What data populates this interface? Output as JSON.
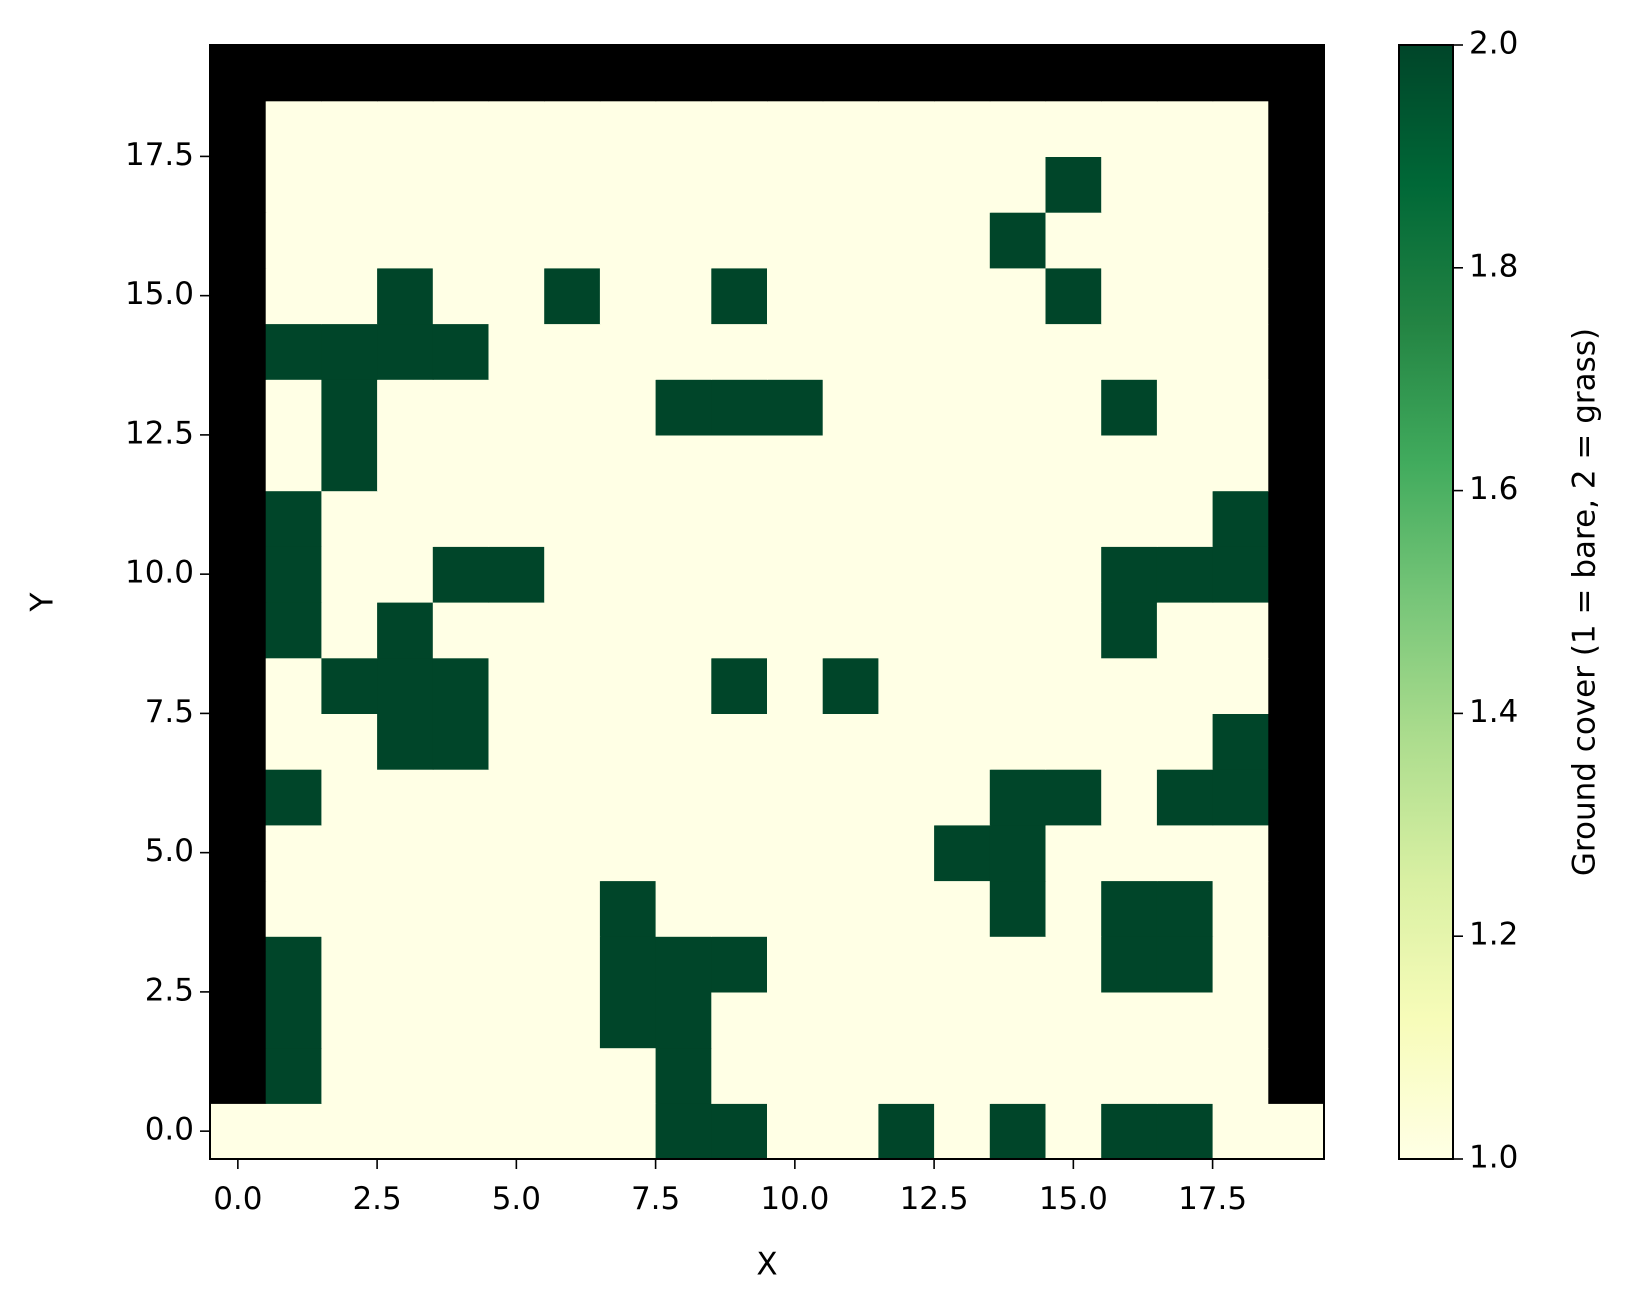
{
  "chart_data": {
    "type": "heatmap",
    "xlabel": "X",
    "ylabel": "Y",
    "colorbar_label": "Ground cover (1 = bare, 2 = grass)",
    "xlim": [
      -0.5,
      19.5
    ],
    "ylim": [
      -0.5,
      19.5
    ],
    "xticks": [
      {
        "value": 0,
        "label": "0.0"
      },
      2.5,
      {
        "value": 5,
        "label": "5.0"
      },
      7.5,
      {
        "value": 10,
        "label": "10.0"
      },
      12.5,
      {
        "value": 15,
        "label": "15.0"
      },
      17.5
    ],
    "yticks": [
      {
        "value": 0,
        "label": "0.0"
      },
      2.5,
      {
        "value": 5,
        "label": "5.0"
      },
      7.5,
      {
        "value": 10,
        "label": "10.0"
      },
      12.5,
      {
        "value": 15,
        "label": "15.0"
      },
      17.5
    ],
    "clim": [
      1,
      2
    ],
    "cticks": [
      {
        "value": 1,
        "label": "1.0"
      },
      1.2,
      1.4,
      1.6,
      1.8,
      {
        "value": 2,
        "label": "2.0"
      }
    ],
    "colormap": [
      "#ffffe5",
      "#f7fcb9",
      "#d9f0a3",
      "#addd8e",
      "#78c679",
      "#41ab5d",
      "#238443",
      "#006837",
      "#004529"
    ],
    "bad_color": "#000000",
    "z": [
      [
        1,
        1,
        1,
        1,
        1,
        1,
        1,
        1,
        2,
        2,
        1,
        1,
        2,
        1,
        2,
        1,
        2,
        2,
        1,
        1
      ],
      [
        null,
        2,
        1,
        1,
        1,
        1,
        1,
        1,
        2,
        1,
        1,
        1,
        1,
        1,
        1,
        1,
        1,
        1,
        1,
        null
      ],
      [
        null,
        2,
        1,
        1,
        1,
        1,
        1,
        2,
        2,
        1,
        1,
        1,
        1,
        1,
        1,
        1,
        1,
        1,
        1,
        null
      ],
      [
        null,
        2,
        1,
        1,
        1,
        1,
        1,
        2,
        2,
        2,
        1,
        1,
        1,
        1,
        1,
        1,
        2,
        2,
        1,
        null
      ],
      [
        null,
        1,
        1,
        1,
        1,
        1,
        1,
        2,
        1,
        1,
        1,
        1,
        1,
        1,
        2,
        1,
        2,
        2,
        1,
        null
      ],
      [
        null,
        1,
        1,
        1,
        1,
        1,
        1,
        1,
        1,
        1,
        1,
        1,
        1,
        2,
        2,
        1,
        1,
        1,
        1,
        null
      ],
      [
        null,
        2,
        1,
        1,
        1,
        1,
        1,
        1,
        1,
        1,
        1,
        1,
        1,
        1,
        2,
        2,
        1,
        2,
        2,
        null
      ],
      [
        null,
        1,
        1,
        2,
        2,
        1,
        1,
        1,
        1,
        1,
        1,
        1,
        1,
        1,
        1,
        1,
        1,
        1,
        2,
        null
      ],
      [
        null,
        1,
        2,
        2,
        2,
        1,
        1,
        1,
        1,
        2,
        1,
        2,
        1,
        1,
        1,
        1,
        1,
        1,
        1,
        null
      ],
      [
        null,
        2,
        1,
        2,
        1,
        1,
        1,
        1,
        1,
        1,
        1,
        1,
        1,
        1,
        1,
        1,
        2,
        1,
        1,
        null
      ],
      [
        null,
        2,
        1,
        1,
        2,
        2,
        1,
        1,
        1,
        1,
        1,
        1,
        1,
        1,
        1,
        1,
        2,
        2,
        2,
        null
      ],
      [
        null,
        2,
        1,
        1,
        1,
        1,
        1,
        1,
        1,
        1,
        1,
        1,
        1,
        1,
        1,
        1,
        1,
        1,
        2,
        null
      ],
      [
        null,
        1,
        2,
        1,
        1,
        1,
        1,
        1,
        1,
        1,
        1,
        1,
        1,
        1,
        1,
        1,
        1,
        1,
        1,
        null
      ],
      [
        null,
        1,
        2,
        1,
        1,
        1,
        1,
        1,
        2,
        2,
        2,
        1,
        1,
        1,
        1,
        1,
        2,
        1,
        1,
        null
      ],
      [
        null,
        2,
        2,
        2,
        2,
        1,
        1,
        1,
        1,
        1,
        1,
        1,
        1,
        1,
        1,
        1,
        1,
        1,
        1,
        null
      ],
      [
        null,
        1,
        1,
        2,
        1,
        1,
        2,
        1,
        1,
        2,
        1,
        1,
        1,
        1,
        1,
        2,
        1,
        1,
        1,
        null
      ],
      [
        null,
        1,
        1,
        1,
        1,
        1,
        1,
        1,
        1,
        1,
        1,
        1,
        1,
        1,
        2,
        1,
        1,
        1,
        1,
        null
      ],
      [
        null,
        1,
        1,
        1,
        1,
        1,
        1,
        1,
        1,
        1,
        1,
        1,
        1,
        1,
        1,
        2,
        1,
        1,
        1,
        null
      ],
      [
        null,
        1,
        1,
        1,
        1,
        1,
        1,
        1,
        1,
        1,
        1,
        1,
        1,
        1,
        1,
        1,
        1,
        1,
        1,
        null
      ],
      [
        null,
        null,
        null,
        null,
        null,
        null,
        null,
        null,
        null,
        null,
        null,
        null,
        null,
        null,
        null,
        null,
        null,
        null,
        null,
        null
      ]
    ]
  }
}
